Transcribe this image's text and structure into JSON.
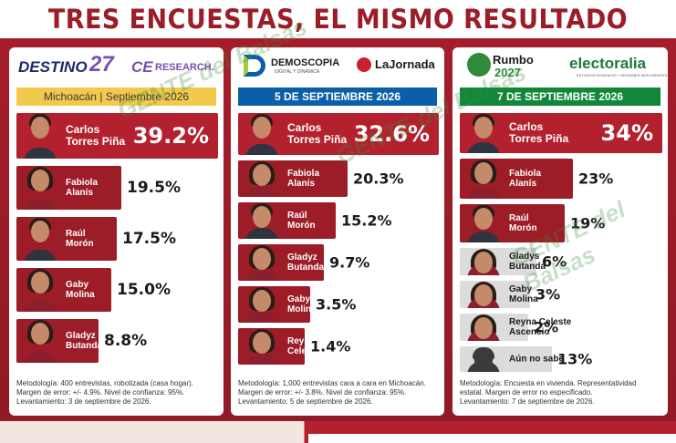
{
  "headline": "TRES ENCUESTAS, EL MISMO RESULTADO",
  "watermark": "GENTE del Balsas",
  "colors": {
    "brand_red": "#9c1c27",
    "lead_band": "#b3212e",
    "band": "#9c1c27",
    "card3_band_gray": "#dcdcdc",
    "card1_header": "#f2c94c",
    "card2_header": "#0b5fa8",
    "card3_header": "#12873a"
  },
  "polls": [
    {
      "logos": [
        "DESTINO",
        "27",
        "CE",
        "RESEARCH."
      ],
      "subheader": "Michoacán | Septiembre 2026",
      "candidates": [
        {
          "name": "Carlos\nTorres Piña",
          "value_label": "39.2%"
        },
        {
          "name": "Fabiola\nAlanís",
          "value_label": "19.5%"
        },
        {
          "name": "Raúl\nMorón",
          "value_label": "17.5%"
        },
        {
          "name": "Gaby\nMolina",
          "value_label": "15.0%"
        },
        {
          "name": "Gladyz\nButanda",
          "value_label": "8.8%"
        }
      ],
      "methodology": [
        "Metodología: 400 entrevistas, robotizada (casa hogar).",
        "Margen de error: +/- 4.9%. Nivel de confianza: 95%.",
        "Levantamiento: 3 de septiembre de 2026."
      ]
    },
    {
      "logos": [
        "DEMOSCOPIA",
        "DIGITAL Y DINÁMICA",
        "LaJornada"
      ],
      "subheader": "5 DE SEPTIEMBRE 2026",
      "candidates": [
        {
          "name": "Carlos\nTorres Piña",
          "value_label": "32.6%"
        },
        {
          "name": "Fabiola\nAlanís",
          "value_label": "20.3%"
        },
        {
          "name": "Raúl\nMorón",
          "value_label": "15.2%"
        },
        {
          "name": "Gladyz\nButanda",
          "value_label": "9.7%"
        },
        {
          "name": "Gaby\nMolina",
          "value_label": "3.5%"
        },
        {
          "name": "Reyna\nCeleste",
          "value_label": "1.4%"
        }
      ],
      "methodology": [
        "Metodología: 1,000 entrevistas cara a cara en Michoacán.",
        "Margen de error: +/- 3.8%. Nivel de confianza: 95%.",
        "Levantamiento: 5 de septiembre de 2026."
      ]
    },
    {
      "logos": [
        "Rumbo",
        "2027",
        "electoralia",
        "ESTUDIOS ESTATALES + REGIONES INTELIGENTES"
      ],
      "subheader": "7 DE SEPTIEMBRE 2026",
      "candidates": [
        {
          "name": "Carlos\nTorres Piña",
          "value_label": "34%"
        },
        {
          "name": "Fabiola\nAlanís",
          "value_label": "23%"
        },
        {
          "name": "Raúl\nMorón",
          "value_label": "19%"
        },
        {
          "name": "Gladys\nButanda",
          "value_label": "6%"
        },
        {
          "name": "Gaby\nMolina",
          "value_label": "3%"
        },
        {
          "name": "Reyna Celeste\nAscencio",
          "value_label": "2%"
        },
        {
          "name": "Aún no sabe",
          "value_label": "13%"
        }
      ],
      "methodology": [
        "Metodología: Encuesta en vivienda. Representatividad",
        "estatal. Margen de error no especificado.",
        "Levantamiento: 7 de septiembre de 2026."
      ]
    }
  ],
  "chart_data": [
    {
      "type": "bar",
      "title": "Michoacán | Septiembre 2026",
      "categories": [
        "Carlos Torres Piña",
        "Fabiola Alanís",
        "Raúl Morón",
        "Gaby Molina",
        "Gladyz Butanda"
      ],
      "values": [
        39.2,
        19.5,
        17.5,
        15.0,
        8.8
      ]
    },
    {
      "type": "bar",
      "title": "5 DE SEPTIEMBRE 2026",
      "categories": [
        "Carlos Torres Piña",
        "Fabiola Alanís",
        "Raúl Morón",
        "Gladyz Butanda",
        "Gaby Molina",
        "Reyna Celeste"
      ],
      "values": [
        32.6,
        20.3,
        15.2,
        9.7,
        3.5,
        1.4
      ]
    },
    {
      "type": "bar",
      "title": "7 DE SEPTIEMBRE 2026",
      "categories": [
        "Carlos Torres Piña",
        "Fabiola Alanís",
        "Raúl Morón",
        "Gladys Butanda",
        "Gaby Molina",
        "Reyna Celeste Ascencio",
        "Aún no sabe"
      ],
      "values": [
        34,
        23,
        19,
        6,
        3,
        2,
        13
      ]
    }
  ]
}
